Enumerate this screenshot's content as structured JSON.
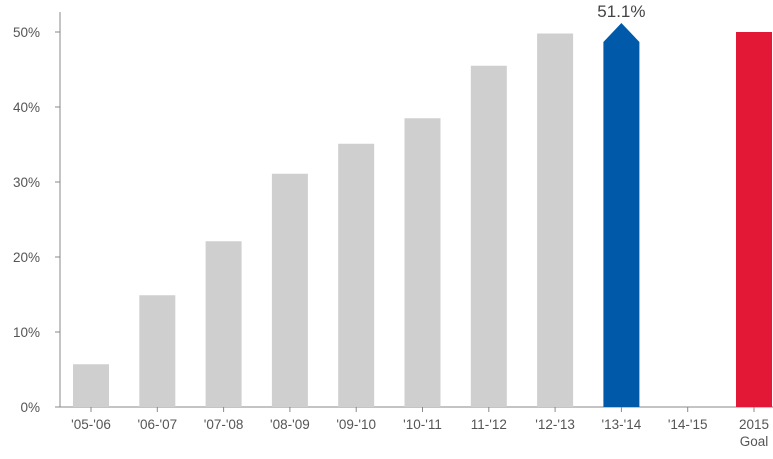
{
  "chart_data": {
    "type": "bar",
    "title": "",
    "xlabel": "",
    "ylabel": "",
    "ylim": [
      0,
      50
    ],
    "grid": false,
    "yticks": [
      {
        "value": 0,
        "label": "0%"
      },
      {
        "value": 10,
        "label": "10%"
      },
      {
        "value": 20,
        "label": "20%"
      },
      {
        "value": 30,
        "label": "30%"
      },
      {
        "value": 40,
        "label": "40%"
      },
      {
        "value": 50,
        "label": "50%"
      }
    ],
    "categories": [
      {
        "label": "'05-'06",
        "sub": ""
      },
      {
        "label": "'06-'07",
        "sub": ""
      },
      {
        "label": "'07-'08",
        "sub": ""
      },
      {
        "label": "'08-'09",
        "sub": ""
      },
      {
        "label": "'09-'10",
        "sub": ""
      },
      {
        "label": "'10-'11",
        "sub": ""
      },
      {
        "label": "11-'12",
        "sub": ""
      },
      {
        "label": "'12-'13",
        "sub": ""
      },
      {
        "label": "'13-'14",
        "sub": ""
      },
      {
        "label": "'14-'15",
        "sub": ""
      },
      {
        "label": "2015",
        "sub": "Goal"
      }
    ],
    "values": [
      5.7,
      14.9,
      22.1,
      31.1,
      35.1,
      38.5,
      45.5,
      49.8,
      51.1,
      null,
      50
    ],
    "colors": [
      "#cfcfd0",
      "#cfcfd0",
      "#cfcfd0",
      "#cfcfd0",
      "#cfcfd0",
      "#cfcfd0",
      "#cfcfd0",
      "#cfcfd0",
      "#005aa9",
      "#cfcfd0",
      "#e31837"
    ],
    "highlight": {
      "index": 8,
      "label": "51.1%",
      "style": "arrow-top"
    }
  }
}
